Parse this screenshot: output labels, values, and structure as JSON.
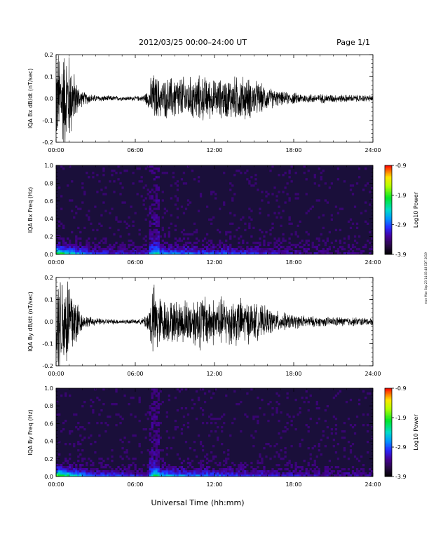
{
  "header": {
    "title": "2012/03/25  00:00–24:00 UT",
    "page": "Page 1/1"
  },
  "side_stamp": "mon Mon Sep 23 14:03:48 EDT 2019",
  "colors": {
    "trace": "#000000",
    "spectrogram_background": "#1a0f3a",
    "colorbar": [
      "#000000",
      "#3b0066",
      "#2020ff",
      "#00a0ff",
      "#00e0c0",
      "#00ff00",
      "#c0ff00",
      "#ffff00",
      "#ff8000",
      "#ff0000"
    ]
  },
  "chart_data": [
    {
      "type": "line",
      "title": "",
      "ylabel": "IQA Bx dB/dt (nT/sec)",
      "xlabel": "",
      "xlim": [
        "00:00",
        "24:00"
      ],
      "ylim": [
        -0.2,
        0.2
      ],
      "yticks": [
        "0.2",
        "0.1",
        "0.0",
        "-0.1",
        "-0.2"
      ],
      "xticks": [
        "00:00",
        "06:00",
        "12:00",
        "18:00",
        "24:00"
      ],
      "envelope": {
        "x_hours": [
          0,
          0.3,
          0.6,
          1,
          1.5,
          2,
          3,
          4,
          5,
          6,
          6.5,
          7,
          7.3,
          7.5,
          8,
          8.5,
          9,
          10,
          11,
          12,
          13,
          14,
          15,
          16,
          17,
          18,
          19,
          20,
          21,
          22,
          23,
          24
        ],
        "amplitude": [
          0.2,
          0.22,
          0.22,
          0.2,
          0.08,
          0.03,
          0.015,
          0.012,
          0.01,
          0.01,
          0.012,
          0.04,
          0.12,
          0.1,
          0.08,
          0.09,
          0.1,
          0.09,
          0.1,
          0.08,
          0.09,
          0.1,
          0.08,
          0.05,
          0.03,
          0.025,
          0.02,
          0.02,
          0.018,
          0.016,
          0.015,
          0.014
        ]
      }
    },
    {
      "type": "heatmap",
      "title": "",
      "ylabel": "IQA Bx Freq (Hz)",
      "xlabel": "",
      "xlim": [
        "00:00",
        "24:00"
      ],
      "ylim": [
        0.0,
        1.0
      ],
      "yticks": [
        "1.0",
        "0.8",
        "0.6",
        "0.4",
        "0.2",
        "0.0"
      ],
      "xticks": [
        "00:00",
        "06:00",
        "12:00",
        "18:00",
        "24:00"
      ],
      "colorbar": {
        "label": "Log10 Power",
        "ticks": [
          "-0.9",
          "-1.9",
          "-2.9",
          "-3.9"
        ],
        "range": [
          -3.9,
          -0.9
        ]
      },
      "intensity": {
        "x_hours": [
          0,
          0.5,
          1,
          2,
          3,
          5,
          7,
          7.5,
          8,
          9,
          10,
          12,
          13,
          14,
          16,
          18,
          20,
          24
        ],
        "low_freq_power": [
          -1.6,
          -1.8,
          -2.2,
          -2.6,
          -2.9,
          -3.0,
          -3.1,
          -2.2,
          -2.5,
          -2.6,
          -2.7,
          -2.8,
          -2.8,
          -2.9,
          -3.0,
          -3.2,
          -3.3,
          -3.4
        ],
        "background_power": -3.6
      }
    },
    {
      "type": "line",
      "title": "",
      "ylabel": "IQA By dB/dt (nT/sec)",
      "xlabel": "",
      "xlim": [
        "00:00",
        "24:00"
      ],
      "ylim": [
        -0.2,
        0.2
      ],
      "yticks": [
        "0.2",
        "0.1",
        "0.0",
        "-0.1",
        "-0.2"
      ],
      "xticks": [
        "00:00",
        "06:00",
        "12:00",
        "18:00",
        "24:00"
      ],
      "envelope": {
        "x_hours": [
          0,
          0.3,
          0.6,
          1,
          1.5,
          2,
          3,
          4,
          5,
          6,
          6.5,
          7,
          7.3,
          7.5,
          8,
          8.5,
          9,
          10,
          11,
          12,
          13,
          14,
          15,
          16,
          17,
          18,
          19,
          20,
          21,
          22,
          23,
          24
        ],
        "amplitude": [
          0.22,
          0.22,
          0.22,
          0.22,
          0.12,
          0.03,
          0.015,
          0.012,
          0.01,
          0.01,
          0.012,
          0.05,
          0.16,
          0.15,
          0.1,
          0.09,
          0.09,
          0.1,
          0.12,
          0.1,
          0.11,
          0.1,
          0.08,
          0.06,
          0.04,
          0.03,
          0.025,
          0.02,
          0.02,
          0.02,
          0.018,
          0.016
        ]
      }
    },
    {
      "type": "heatmap",
      "title": "",
      "ylabel": "IQA By Freq (Hz)",
      "xlabel": "Universal Time (hh:mm)",
      "xlim": [
        "00:00",
        "24:00"
      ],
      "ylim": [
        0.0,
        1.0
      ],
      "yticks": [
        "1.0",
        "0.8",
        "0.6",
        "0.4",
        "0.2",
        "0.0"
      ],
      "xticks": [
        "00:00",
        "06:00",
        "12:00",
        "18:00",
        "24:00"
      ],
      "colorbar": {
        "label": "Log10 Power",
        "ticks": [
          "-0.9",
          "-1.9",
          "-2.9",
          "-3.9"
        ],
        "range": [
          -3.9,
          -0.9
        ]
      },
      "intensity": {
        "x_hours": [
          0,
          0.5,
          1,
          2,
          3,
          5,
          7,
          7.5,
          8,
          9,
          10,
          12,
          13,
          14,
          16,
          18,
          20,
          24
        ],
        "low_freq_power": [
          -1.3,
          -1.6,
          -2.0,
          -2.4,
          -2.8,
          -2.9,
          -3.0,
          -2.0,
          -2.3,
          -2.5,
          -2.6,
          -2.7,
          -2.8,
          -2.9,
          -3.0,
          -3.1,
          -3.2,
          -3.3
        ],
        "background_power": -3.6
      }
    }
  ]
}
